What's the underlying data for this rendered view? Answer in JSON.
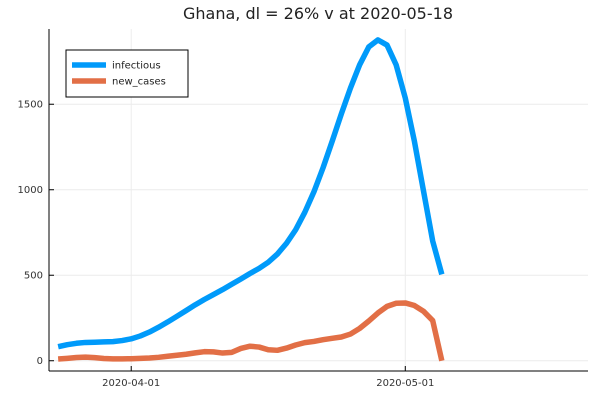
{
  "chart_data": {
    "type": "line",
    "title": "Ghana,  dl = 26% v at 2020-05-18",
    "xlabel": "",
    "ylabel": "",
    "x_start": "2020-03-24",
    "xlim": [
      "2020-03-23",
      "2020-05-21"
    ],
    "ylim": [
      -60,
      1940
    ],
    "x_ticks": [
      {
        "date": "2020-04-01",
        "label": "2020-04-01"
      },
      {
        "date": "2020-05-01",
        "label": "2020-05-01"
      }
    ],
    "y_ticks": [
      {
        "value": 0,
        "label": "0"
      },
      {
        "value": 500,
        "label": "500"
      },
      {
        "value": 1000,
        "label": "1000"
      },
      {
        "value": 1500,
        "label": "1500"
      }
    ],
    "grid": true,
    "legend": {
      "position": "top-left"
    },
    "series": [
      {
        "name": "infectious",
        "color": "#009AFA",
        "values": [
          82,
          94,
          102,
          107,
          108,
          110,
          112,
          118,
          128,
          145,
          168,
          196,
          227,
          260,
          293,
          327,
          358,
          387,
          416,
          447,
          478,
          510,
          540,
          576,
          624,
          687,
          766,
          868,
          988,
          1129,
          1284,
          1444,
          1595,
          1730,
          1835,
          1876,
          1846,
          1730,
          1536,
          1283,
          991,
          700,
          505
        ]
      },
      {
        "name": "new_cases",
        "color": "#E26F46",
        "values": [
          10,
          14,
          19,
          21,
          18,
          13,
          11,
          11,
          12,
          14,
          16,
          20,
          26,
          32,
          38,
          46,
          53,
          52,
          45,
          49,
          72,
          85,
          80,
          64,
          61,
          74,
          92,
          106,
          113,
          123,
          131,
          139,
          156,
          189,
          232,
          279,
          318,
          336,
          338,
          323,
          289,
          235,
          0
        ]
      }
    ]
  }
}
